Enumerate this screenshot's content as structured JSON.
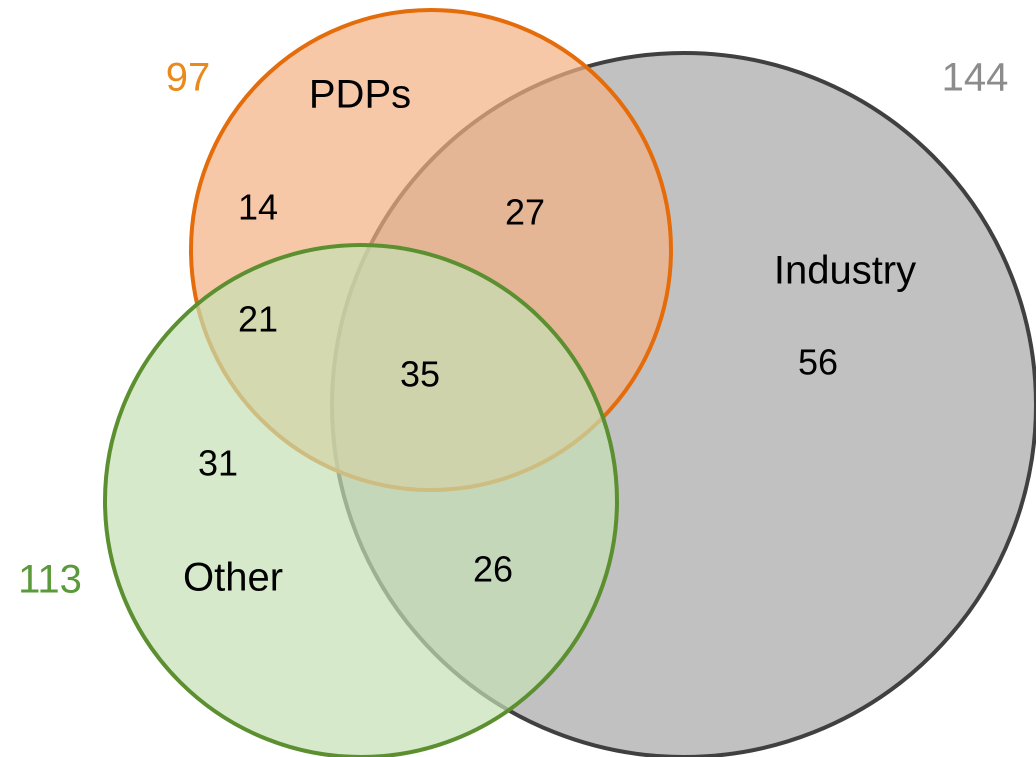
{
  "sets": [
    {
      "name": "PDPs",
      "total": 97,
      "color": "#f4b183",
      "stroke": "#e46c0a",
      "total_color": "#ea8a1c"
    },
    {
      "name": "Industry",
      "total": 144,
      "color": "#a6a6a6",
      "stroke": "#404040",
      "total_color": "#8c8c8c"
    },
    {
      "name": "Other",
      "total": 113,
      "color": "#c5e0b4",
      "stroke": "#5b8f30",
      "total_color": "#5b9a3a"
    }
  ],
  "regions": [
    14,
    27,
    21,
    35,
    56,
    31,
    26
  ]
}
